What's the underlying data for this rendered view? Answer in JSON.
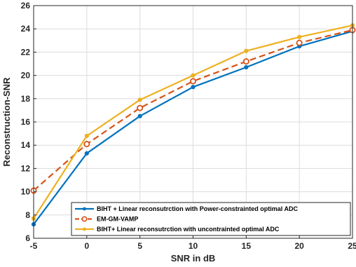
{
  "chart_data": {
    "type": "line",
    "title": "",
    "xlabel": "SNR in dB",
    "ylabel": "Reconstruction-SNR",
    "xlim": [
      -5,
      25
    ],
    "ylim": [
      6,
      26
    ],
    "xticks": [
      -5,
      0,
      5,
      10,
      15,
      20,
      25
    ],
    "yticks": [
      6,
      8,
      10,
      12,
      14,
      16,
      18,
      20,
      22,
      24,
      26
    ],
    "grid": true,
    "legend_position": "bottom-right",
    "x": [
      -5,
      0,
      5,
      10,
      15,
      20,
      25
    ],
    "series": [
      {
        "name": "BIHT + Linear reconsutrction with Power-constrainted optimal ADC",
        "values": [
          7.2,
          13.3,
          16.5,
          19.0,
          20.7,
          22.5,
          23.8
        ],
        "color": "#0072BD",
        "style": "solid",
        "marker": "dot"
      },
      {
        "name": "EM-GM-VAMP",
        "values": [
          10.1,
          14.1,
          17.2,
          19.5,
          21.2,
          22.8,
          23.9
        ],
        "color": "#D95319",
        "style": "dashed",
        "marker": "circle"
      },
      {
        "name": "BIHT+ Linear reconsutrction with uncontrainted optimal ADC",
        "values": [
          7.7,
          14.8,
          17.9,
          20.0,
          22.1,
          23.3,
          24.3
        ],
        "color": "#EDB120",
        "style": "solid",
        "marker": "dot"
      }
    ]
  }
}
